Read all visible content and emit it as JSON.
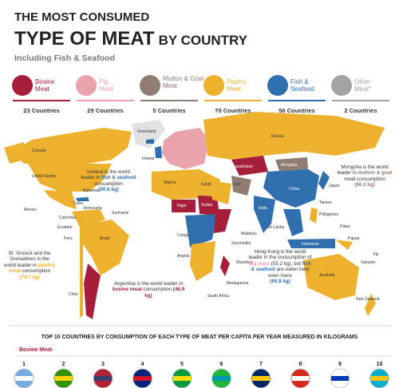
{
  "header": {
    "title_line1": "THE MOST CONSUMED",
    "title_main": "TYPE OF MEAT",
    "title_rest": "BY COUNTRY",
    "subtitle": "Including Fish & Seafood"
  },
  "legend": [
    {
      "label": "Bovine Meat",
      "count": "23 Countries",
      "color": "#a61e3a"
    },
    {
      "label": "Pig Meat",
      "count": "29 Countries",
      "color": "#e9a3ad"
    },
    {
      "label": "Mutton & Goat Meat",
      "count": "5 Countries",
      "color": "#8f7c72"
    },
    {
      "label": "Poultry Meat",
      "count": "70 Countries",
      "color": "#eeb12e"
    },
    {
      "label": "Fish & Seafood",
      "count": "56 Countries",
      "color": "#2f6fae"
    },
    {
      "label": "Other Meat*",
      "count": "2 Countries",
      "color": "#a3a3a3"
    }
  ],
  "callouts": [
    [
      "Iceland is the world leader in",
      "fish & seafood",
      "consumption",
      "(90.6 kg)"
    ],
    [
      "Mongolia is the world leader in",
      "mutton & goat",
      "meat consumption",
      "(66.3 kg)"
    ],
    [
      "St. Vincent and the Grenadines is the world leader in",
      "poultry meat",
      "consumption",
      "(74.7 kg)"
    ],
    [
      "Argentina is the world leader in",
      "bovine meat",
      "consumption",
      "(46.9 kg)"
    ],
    [
      "Hong Kong is the world leader in the consumption of",
      "pig meat",
      "(55.2 kg), but",
      "fish & seafood",
      "are eaten here even more",
      "(65.8 kg)"
    ]
  ],
  "countries": [
    "Canada",
    "United States",
    "Mexico",
    "Bahamas",
    "Cuba",
    "Greenland",
    "Ireland",
    "Russia",
    "Kazakhstan",
    "Mongolia",
    "China",
    "Japan",
    "India",
    "Taiwan",
    "Philippines",
    "Sri Lanka",
    "Maldives",
    "Seychelles",
    "Madagascar",
    "Mauritius",
    "South Africa",
    "Angola",
    "Congo",
    "Sudan",
    "Niger",
    "Algeria",
    "Egypt",
    "Brazil",
    "Peru",
    "Ecuador",
    "Chile",
    "Suriname",
    "Venezuela",
    "Colombia",
    "Australia",
    "New Zealand",
    "Indonesia",
    "Papua",
    "Vanuatu",
    "Fiji",
    "Palau",
    "Iran"
  ],
  "bottom": {
    "title": "TOP 10 COUNTRIES BY CONSUMPTION OF EACH TYPE OF MEAT PER CAPITA PER YEAR MEASURED IN KILOGRAMS",
    "category": "Bovine Meat",
    "ranks": [
      "1",
      "2",
      "3",
      "4",
      "5",
      "6",
      "7",
      "8",
      "9",
      "10"
    ]
  }
}
